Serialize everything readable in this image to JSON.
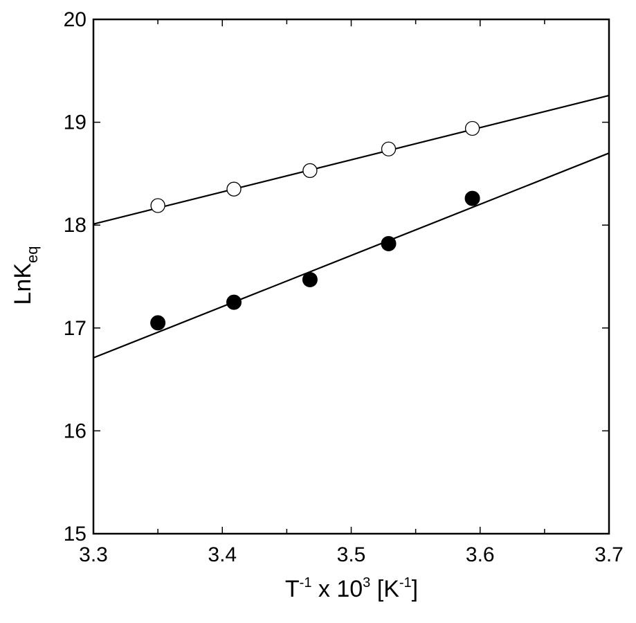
{
  "chart_data": {
    "type": "scatter",
    "title": "",
    "xlabel": {
      "base": "T",
      "sup1": "-1",
      "mid": " x 10",
      "sup2": "3",
      "tail1": " [K",
      "sup3": "-1",
      "tail2": "]"
    },
    "ylabel": {
      "base": "LnK",
      "sub": "eq"
    },
    "xlim": [
      3.3,
      3.7
    ],
    "ylim": [
      15,
      20
    ],
    "xticks": [
      "3.3",
      "3.4",
      "3.5",
      "3.6",
      "3.7"
    ],
    "yticks": [
      "15",
      "16",
      "17",
      "18",
      "19",
      "20"
    ],
    "grid": false,
    "legend": false,
    "series": [
      {
        "marker": "open-circle",
        "x": [
          3.35,
          3.409,
          3.468,
          3.529,
          3.594
        ],
        "y": [
          18.19,
          18.35,
          18.53,
          18.74,
          18.94
        ],
        "fit_line": {
          "x": [
            3.3,
            3.7
          ],
          "y": [
            18.01,
            19.26
          ]
        }
      },
      {
        "marker": "filled-circle",
        "x": [
          3.35,
          3.409,
          3.468,
          3.529,
          3.594
        ],
        "y": [
          17.05,
          17.25,
          17.47,
          17.82,
          18.26
        ],
        "fit_line": {
          "x": [
            3.3,
            3.7
          ],
          "y": [
            16.71,
            18.7
          ]
        }
      }
    ]
  }
}
